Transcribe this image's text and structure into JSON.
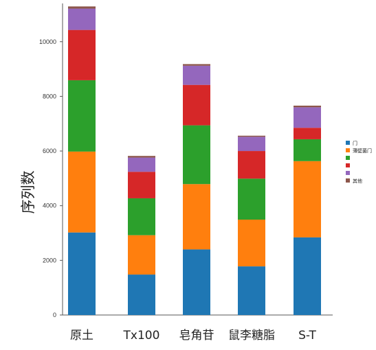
{
  "chart_data": {
    "type": "bar",
    "stacked": true,
    "categories": [
      "原土",
      "Tx100",
      "皂角苷",
      "鼠李糖脂",
      "S-T"
    ],
    "ylabel": "序列数",
    "xlabel": "",
    "ylim": [
      0,
      11400
    ],
    "yticks": [
      0,
      2000,
      4000,
      6000,
      8000,
      10000
    ],
    "grid": false,
    "legend_position": "right",
    "series": [
      {
        "name": "",
        "color": "#1f77b4",
        "values": [
          3020,
          1480,
          2400,
          1780,
          2840
        ]
      },
      {
        "name": "",
        "color": "#ff7f0e",
        "values": [
          2960,
          1440,
          2390,
          1710,
          2790
        ]
      },
      {
        "name": "",
        "color": "#2ca02c",
        "values": [
          2610,
          1350,
          2150,
          1500,
          800
        ]
      },
      {
        "name": "",
        "color": "#d62728",
        "values": [
          1840,
          970,
          1480,
          1010,
          420
        ]
      },
      {
        "name": "",
        "color": "#9467bd",
        "values": [
          780,
          520,
          700,
          520,
          750
        ]
      },
      {
        "name": "",
        "color": "#8c564b",
        "values": [
          80,
          60,
          60,
          40,
          60
        ]
      }
    ],
    "legend_text": [
      "门",
      "薄壁菌门",
      "",
      "",
      "",
      "其他"
    ]
  }
}
